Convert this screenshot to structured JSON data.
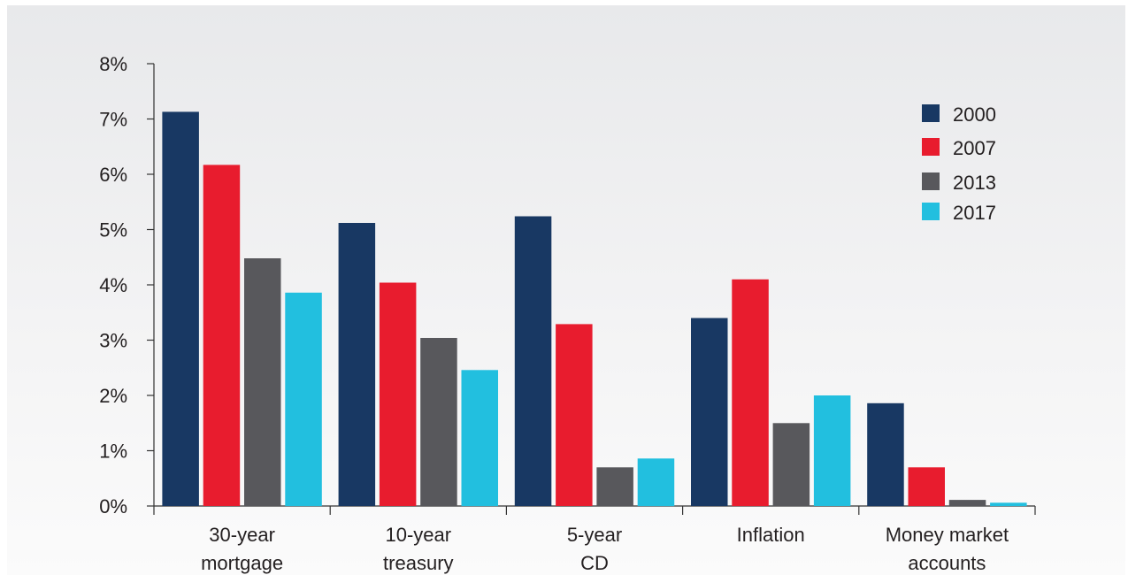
{
  "chart_data": {
    "type": "bar",
    "title": "",
    "xlabel": "",
    "ylabel": "",
    "ylim": [
      0,
      8
    ],
    "y_ticks": [
      "0%",
      "1%",
      "2%",
      "3%",
      "4%",
      "5%",
      "6%",
      "7%",
      "8%"
    ],
    "categories": [
      [
        "30-year",
        "mortgage"
      ],
      [
        "10-year",
        "treasury"
      ],
      [
        "5-year",
        "CD"
      ],
      [
        "Inflation"
      ],
      [
        "Money market",
        "accounts"
      ]
    ],
    "series": [
      {
        "name": "2000",
        "color": "#183863",
        "values": [
          7.13,
          5.12,
          5.24,
          3.4,
          1.86
        ]
      },
      {
        "name": "2007",
        "color": "#e81c2e",
        "values": [
          6.17,
          4.04,
          3.29,
          4.1,
          0.7
        ]
      },
      {
        "name": "2013",
        "color": "#58585c",
        "values": [
          4.48,
          3.04,
          0.7,
          1.5,
          0.11
        ]
      },
      {
        "name": "2017",
        "color": "#22bfdf",
        "values": [
          3.86,
          2.46,
          0.86,
          2.0,
          0.06
        ]
      }
    ],
    "legend_position": "top-right",
    "grid": false
  }
}
